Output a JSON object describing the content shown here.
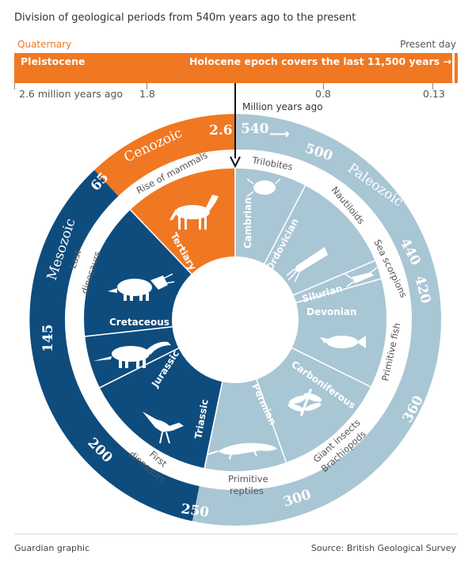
{
  "title": "Division of geological periods from 540m years ago to the present",
  "quaternary_bar": {
    "label_top_left": "Quaternary",
    "label_top_right": "Present day",
    "bar_left": "Pleistocene",
    "bar_right": "Holocene epoch covers the last 11,500 years →",
    "ticks": [
      "2.6 million years ago",
      "1.8",
      "0.8",
      "0.13"
    ],
    "unit_label": "Million years ago"
  },
  "eras": [
    {
      "name": "Cenozoic",
      "color": "#f07822"
    },
    {
      "name": "Paleozoic",
      "color": "#a9c6d4"
    },
    {
      "name": "Mesozoic",
      "color": "#0e4c7e"
    }
  ],
  "ring_numbers": [
    "2.6",
    "540",
    "500",
    "440",
    "420",
    "360",
    "300",
    "250",
    "200",
    "145",
    "65"
  ],
  "arrow_symbol": "⟶",
  "periods": [
    {
      "name": "Tertiary",
      "era": "Cenozoic"
    },
    {
      "name": "Cambrian",
      "era": "Paleozoic"
    },
    {
      "name": "Ordovician",
      "era": "Paleozoic"
    },
    {
      "name": "Silurian",
      "era": "Paleozoic"
    },
    {
      "name": "Devonian",
      "era": "Paleozoic"
    },
    {
      "name": "Carboniferous",
      "era": "Paleozoic"
    },
    {
      "name": "Permian",
      "era": "Paleozoic"
    },
    {
      "name": "Triassic",
      "era": "Mesozoic"
    },
    {
      "name": "Jurassic",
      "era": "Mesozoic"
    },
    {
      "name": "Cretaceous",
      "era": "Mesozoic"
    }
  ],
  "annotations": {
    "rise_of_mammals": "Rise of mammals",
    "trilobites": "Trilobites",
    "nautiloids": "Nautiloids",
    "sea_scorpions": "Sea scorpions",
    "primitive_fish": "Primitive fish",
    "giant_insects": "Giant insects",
    "brachiopods": "Brachiopods",
    "primitive": "Primitive",
    "reptiles": "reptiles",
    "first": "First",
    "dinosaurs_first": "dinosaurs",
    "last": "Last",
    "dinosaurs_last": "dinosaurs"
  },
  "footer": {
    "credit": "Guardian graphic",
    "source": "Source: British Geological Survey"
  }
}
